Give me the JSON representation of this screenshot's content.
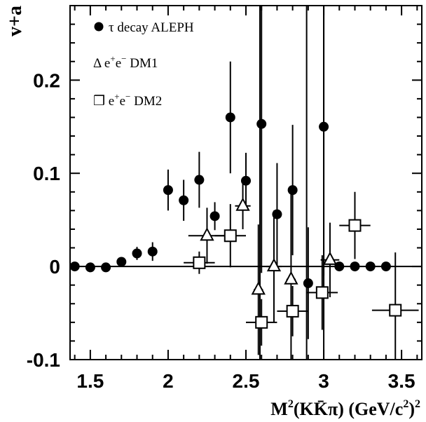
{
  "chart_data": {
    "type": "scatter",
    "title": "",
    "xlabel": "M²(KK̄π) (GeV/c²)²",
    "ylabel": "v+a",
    "xlim": [
      1.37,
      3.63
    ],
    "ylim": [
      -0.1,
      0.28
    ],
    "xticks": [
      "1.5",
      "2",
      "2.5",
      "3",
      "3.5"
    ],
    "yticks": [
      "-0.1",
      "0",
      "0.1",
      "0.2"
    ],
    "xtick_values": [
      1.5,
      2.0,
      2.5,
      3.0,
      3.5
    ],
    "ytick_values": [
      -0.1,
      0.0,
      0.1,
      0.2
    ],
    "grid": false,
    "legend_position": "top-left",
    "reference_lines": {
      "y": 0,
      "x": [
        2.59,
        2.89,
        3.0
      ]
    },
    "series": [
      {
        "name": "τ decay ALEPH",
        "marker": "filled-circle",
        "points": [
          {
            "x": 1.4,
            "y": 0.0,
            "xerr": 0.0,
            "yerr": 0.0
          },
          {
            "x": 1.5,
            "y": -0.001,
            "xerr": 0.0,
            "yerr": 0.0
          },
          {
            "x": 1.6,
            "y": -0.001,
            "xerr": 0.0,
            "yerr": 0.0
          },
          {
            "x": 1.7,
            "y": 0.005,
            "xerr": 0.02,
            "yerr": 0.0
          },
          {
            "x": 1.8,
            "y": 0.014,
            "xerr": 0.03,
            "yerr": 0.007
          },
          {
            "x": 1.9,
            "y": 0.016,
            "xerr": 0.03,
            "yerr": 0.01
          },
          {
            "x": 2.0,
            "y": 0.082,
            "xerr": 0.03,
            "yerr": 0.022
          },
          {
            "x": 2.1,
            "y": 0.071,
            "xerr": 0.03,
            "yerr": 0.022
          },
          {
            "x": 2.2,
            "y": 0.093,
            "xerr": 0.03,
            "yerr": 0.03
          },
          {
            "x": 2.3,
            "y": 0.054,
            "xerr": 0.03,
            "yerr": 0.015
          },
          {
            "x": 2.4,
            "y": 0.16,
            "xerr": 0.03,
            "yerr": 0.06
          },
          {
            "x": 2.5,
            "y": 0.092,
            "xerr": 0.03,
            "yerr": 0.03
          },
          {
            "x": 2.6,
            "y": 0.153,
            "xerr": 0.03,
            "yerr": 0.16
          },
          {
            "x": 2.7,
            "y": 0.056,
            "xerr": 0.03,
            "yerr": 0.055
          },
          {
            "x": 2.8,
            "y": 0.082,
            "xerr": 0.03,
            "yerr": 0.07
          },
          {
            "x": 2.9,
            "y": -0.018,
            "xerr": 0.03,
            "yerr": 0.06
          },
          {
            "x": 3.0,
            "y": 0.15,
            "xerr": 0.03,
            "yerr": 0.16
          },
          {
            "x": 3.1,
            "y": 0.0,
            "xerr": 0.0,
            "yerr": 0.0
          },
          {
            "x": 3.2,
            "y": 0.0,
            "xerr": 0.0,
            "yerr": 0.0
          },
          {
            "x": 3.3,
            "y": 0.0,
            "xerr": 0.0,
            "yerr": 0.0
          },
          {
            "x": 3.4,
            "y": 0.0,
            "xerr": 0.0,
            "yerr": 0.0
          }
        ]
      },
      {
        "name": "Δ e⁺e⁻ DM1",
        "marker": "open-triangle",
        "points": [
          {
            "x": 2.25,
            "y": 0.033,
            "xerr": 0.12,
            "yerr": 0.03
          },
          {
            "x": 2.48,
            "y": 0.065,
            "xerr": 0.05,
            "yerr": 0.025
          },
          {
            "x": 2.58,
            "y": -0.025,
            "xerr": 0.03,
            "yerr": 0.07
          },
          {
            "x": 2.68,
            "y": 0.0,
            "xerr": 0.05,
            "yerr": 0.06
          },
          {
            "x": 2.79,
            "y": -0.014,
            "xerr": 0.03,
            "yerr": 0.1
          },
          {
            "x": 3.04,
            "y": 0.007,
            "xerr": 0.06,
            "yerr": 0.04
          }
        ]
      },
      {
        "name": "❒ e⁺e⁻ DM2",
        "marker": "open-square",
        "points": [
          {
            "x": 2.2,
            "y": 0.004,
            "xerr": 0.1,
            "yerr": 0.012
          },
          {
            "x": 2.4,
            "y": 0.033,
            "xerr": 0.1,
            "yerr": 0.034
          },
          {
            "x": 2.6,
            "y": -0.06,
            "xerr": 0.1,
            "yerr": 0.025
          },
          {
            "x": 2.8,
            "y": -0.048,
            "xerr": 0.1,
            "yerr": 0.027
          },
          {
            "x": 2.99,
            "y": -0.028,
            "xerr": 0.1,
            "yerr": 0.04
          },
          {
            "x": 3.2,
            "y": 0.044,
            "xerr": 0.1,
            "yerr": 0.036
          },
          {
            "x": 3.46,
            "y": -0.047,
            "xerr": 0.15,
            "yerr": 0.062
          }
        ]
      }
    ]
  },
  "axis_labels": {
    "y": "v+a",
    "x_prefix": "M",
    "x_sup1": "2",
    "x_paren": "(KK̄π) (GeV/c",
    "x_sup2": "2",
    "x_close": ")",
    "x_sup3": "2"
  },
  "legend": [
    {
      "symbol": "",
      "label": "τ decay ALEPH"
    },
    {
      "symbol": "Δ",
      "label_base": "e",
      "label_sup1": "+",
      "label_mid": "e",
      "label_sup2": "−",
      "label_tail": " DM1"
    },
    {
      "symbol": "❒",
      "label_base": "e",
      "label_sup1": "+",
      "label_mid": "e",
      "label_sup2": "−",
      "label_tail": " DM2"
    }
  ]
}
